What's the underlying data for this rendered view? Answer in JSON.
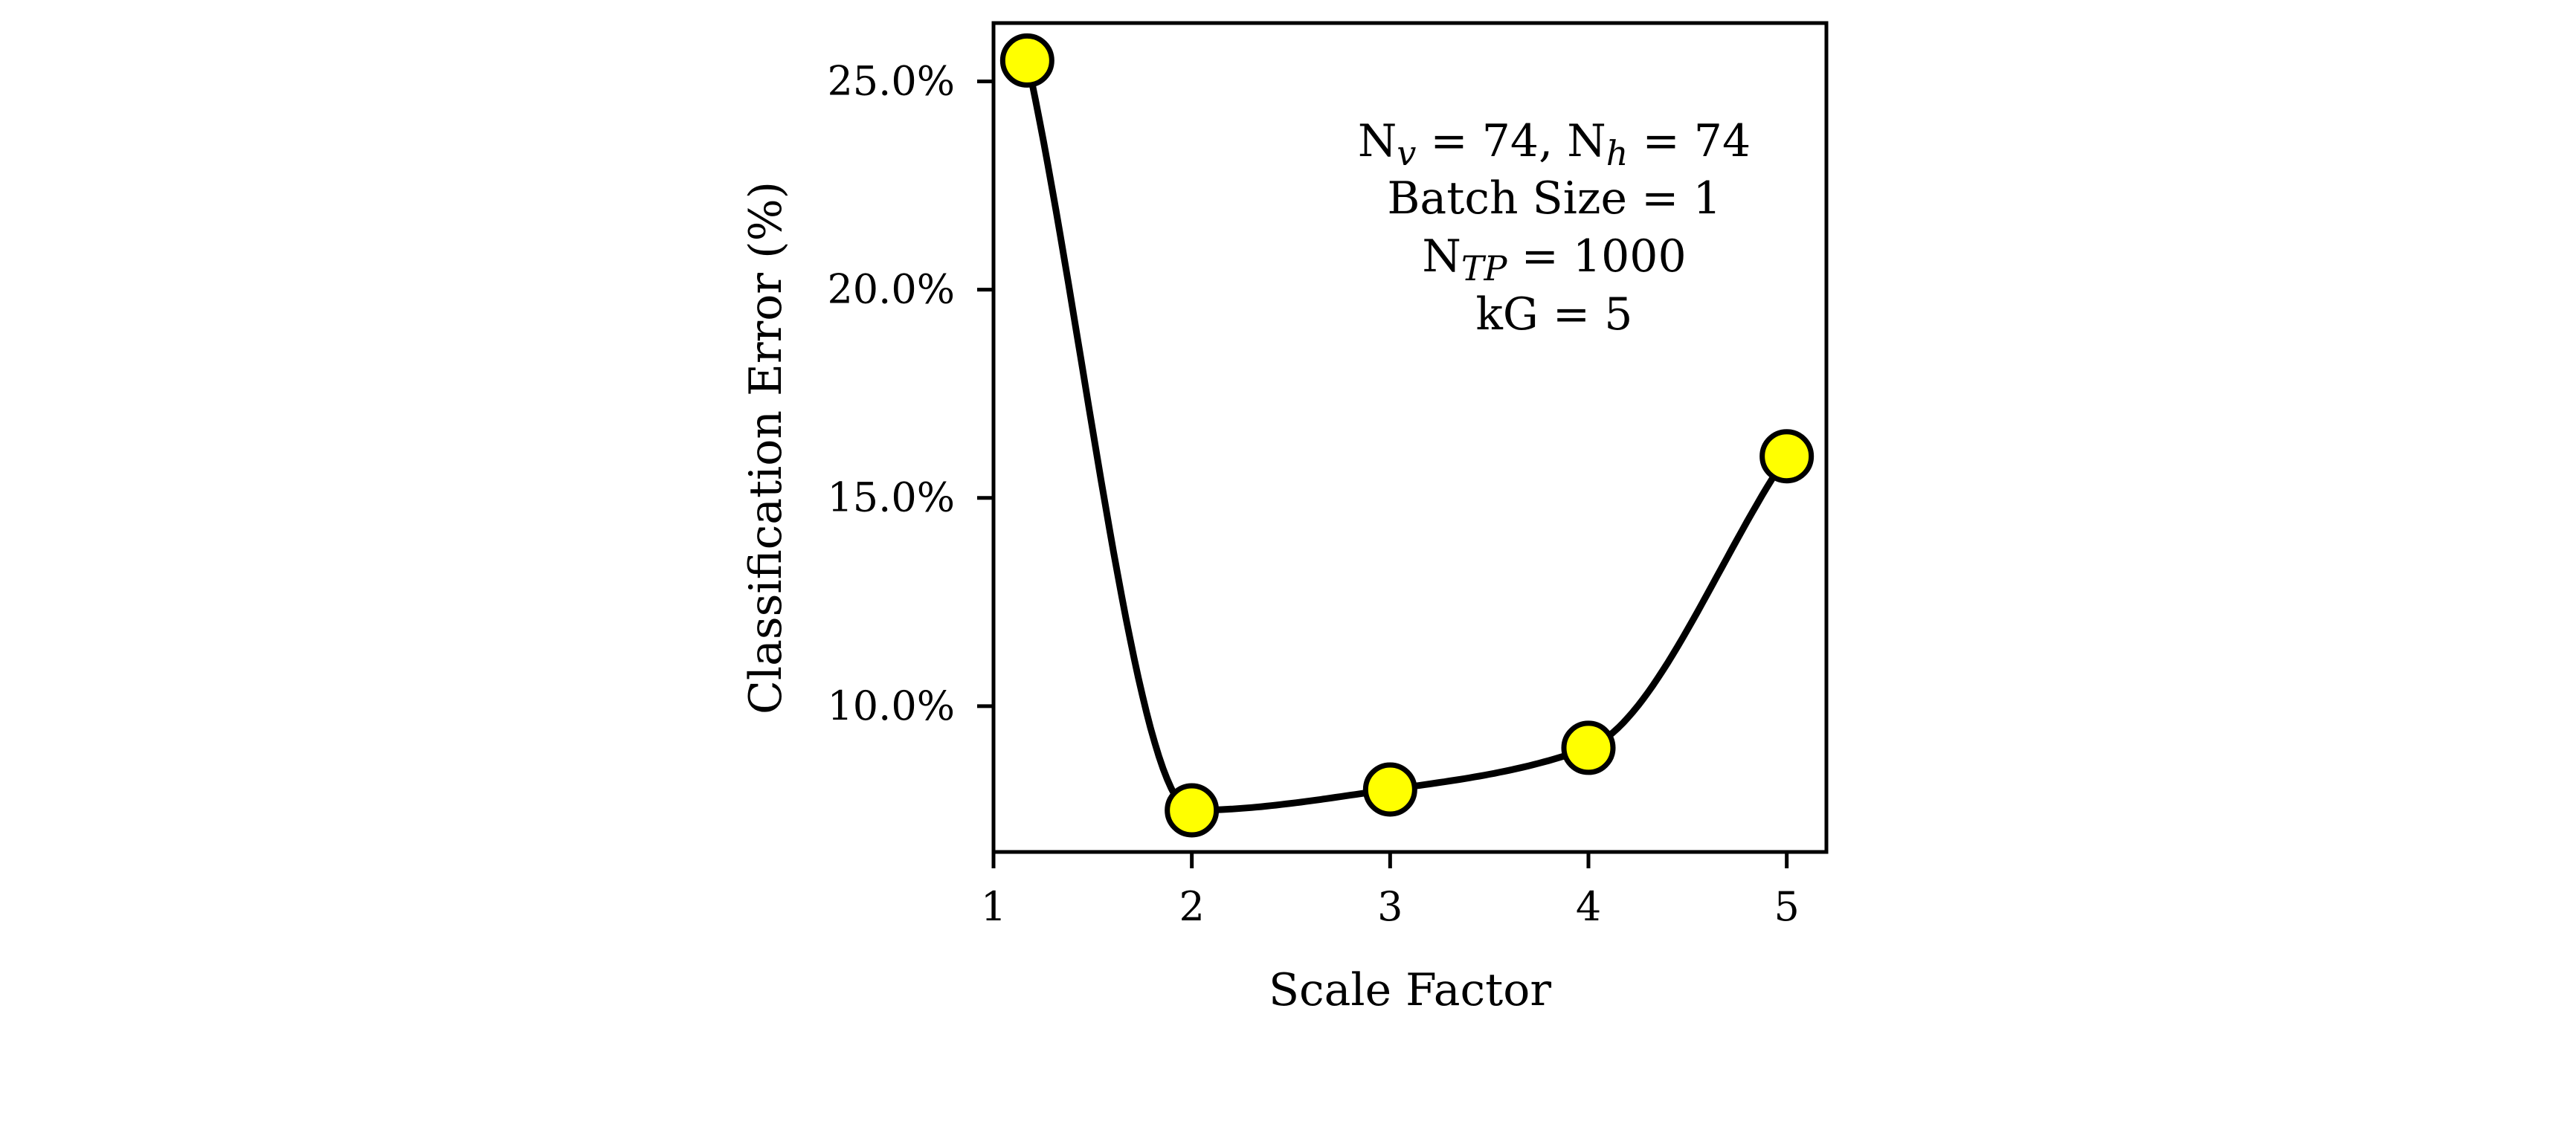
{
  "chart_data": {
    "type": "line",
    "title": "",
    "xlabel": "Scale Factor",
    "ylabel": "Classification Error (%)",
    "xlim": [
      1,
      5.2
    ],
    "ylim": [
      6.5,
      26.4
    ],
    "xticks": [
      1,
      2,
      3,
      4,
      5
    ],
    "xtick_labels": [
      "1",
      "2",
      "3",
      "4",
      "5"
    ],
    "yticks": [
      10,
      15,
      20,
      25
    ],
    "ytick_labels": [
      "10.0%",
      "15.0%",
      "20.0%",
      "25.0%"
    ],
    "grid": false,
    "legend": "none",
    "series": [
      {
        "x": [
          1.17,
          2,
          3,
          4,
          5
        ],
        "y": [
          25.5,
          7.5,
          8.0,
          9.0,
          16.0
        ],
        "style": "smooth curve with circle markers",
        "line_color": "#000000",
        "marker_color": "#ffff00",
        "marker_edge_color": "#000000"
      }
    ],
    "annotations": [
      {
        "line": 1,
        "parts": [
          {
            "text": "N",
            "sub": false
          },
          {
            "text": "v",
            "sub": true
          },
          {
            "text": " = 74, N",
            "sub": false
          },
          {
            "text": "h",
            "sub": true
          },
          {
            "text": " = 74",
            "sub": false
          }
        ]
      },
      {
        "line": 2,
        "parts": [
          {
            "text": "Batch Size = 1",
            "sub": false
          }
        ]
      },
      {
        "line": 3,
        "parts": [
          {
            "text": "N",
            "sub": false
          },
          {
            "text": "TP",
            "sub": true
          },
          {
            "text": " = 1000",
            "sub": false
          }
        ]
      },
      {
        "line": 4,
        "parts": [
          {
            "text": "kG = 5",
            "sub": false
          }
        ]
      }
    ]
  }
}
